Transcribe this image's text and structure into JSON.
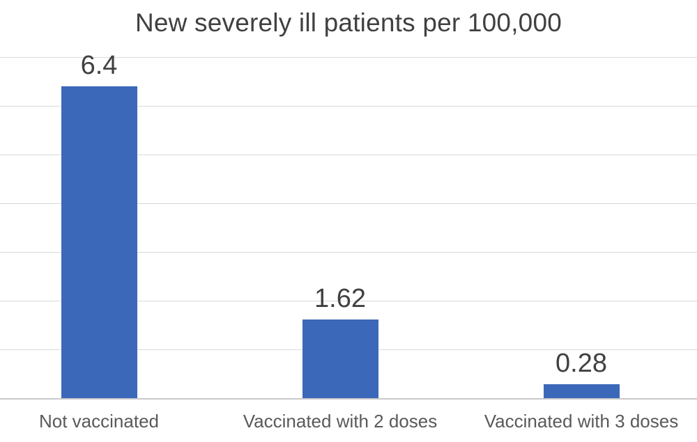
{
  "chart_data": {
    "type": "bar",
    "title": "New severely ill patients per 100,000",
    "categories": [
      "Not vaccinated",
      "Vaccinated with 2 doses",
      "Vaccinated with 3 doses"
    ],
    "values": [
      6.4,
      1.62,
      0.28
    ],
    "data_labels": [
      "6.4",
      "1.62",
      "0.28"
    ],
    "xlabel": "",
    "ylabel": "",
    "ylim": [
      0,
      7
    ],
    "gridline_interval": 1,
    "grid": "horizontal gridlines on",
    "legend_position": "none",
    "y_axis_tick_labels_visible": false,
    "colors": {
      "bar": "#3b68b9",
      "gridline": "#d9d9d9",
      "axis_line": "#c9c9c9",
      "title_text": "#404040",
      "value_label_text": "#404040",
      "category_label_text": "#595959",
      "background": "#ffffff"
    }
  }
}
